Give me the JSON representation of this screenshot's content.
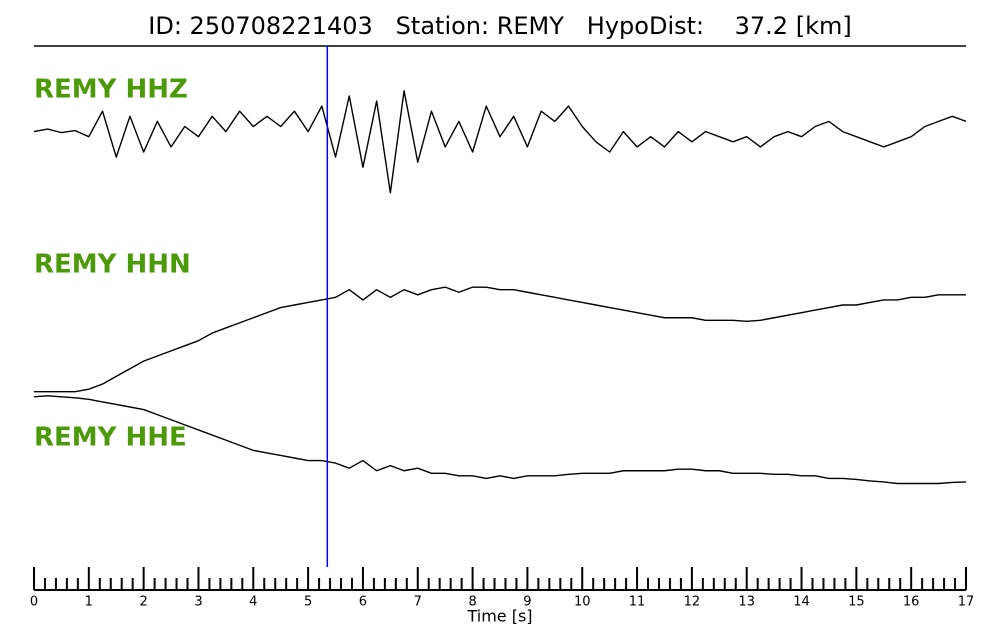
{
  "chart_data": {
    "type": "line",
    "title": "ID: 250708221403   Station: REMY   HypoDist:    37.2 [km]",
    "x_label": "Time [s]",
    "xlim": [
      0,
      17
    ],
    "xticks": [
      0,
      1,
      2,
      3,
      4,
      5,
      6,
      7,
      8,
      9,
      10,
      11,
      12,
      13,
      14,
      15,
      16,
      17
    ],
    "xminorticks": [
      0.2,
      0.4,
      0.6,
      0.8,
      1.2,
      1.4,
      1.6,
      1.8,
      2.2,
      2.4,
      2.6,
      2.8,
      3.2,
      3.4,
      3.6,
      3.8,
      4.2,
      4.4,
      4.6,
      4.8,
      5.2,
      5.4,
      5.6,
      5.8,
      6.2,
      6.4,
      6.6,
      6.8,
      7.2,
      7.4,
      7.6,
      7.8,
      8.2,
      8.4,
      8.6,
      8.8,
      9.2,
      9.4,
      9.6,
      9.8,
      10.2,
      10.4,
      10.6,
      10.8,
      11.2,
      11.4,
      11.6,
      11.8,
      12.2,
      12.4,
      12.6,
      12.8,
      13.2,
      13.4,
      13.6,
      13.8,
      14.2,
      14.4,
      14.6,
      14.8,
      15.2,
      15.4,
      15.6,
      15.8,
      16.2,
      16.4,
      16.6,
      16.8
    ],
    "ylim": [
      0,
      100
    ],
    "pick": {
      "x": 5.35,
      "color": "#0000ff"
    },
    "label_color": "#4c9a0a",
    "x": [
      0,
      0.25,
      0.5,
      0.75,
      1,
      1.25,
      1.5,
      1.75,
      2,
      2.25,
      2.5,
      2.75,
      3,
      3.25,
      3.5,
      3.75,
      4,
      4.25,
      4.5,
      4.75,
      5,
      5.25,
      5.5,
      5.75,
      6,
      6.25,
      6.5,
      6.75,
      7,
      7.25,
      7.5,
      7.75,
      8,
      8.25,
      8.5,
      8.75,
      9,
      9.25,
      9.5,
      9.75,
      10,
      10.25,
      10.5,
      10.75,
      11,
      11.25,
      11.5,
      11.75,
      12,
      12.25,
      12.5,
      12.75,
      13,
      13.25,
      13.5,
      13.75,
      14,
      14.25,
      14.5,
      14.75,
      15,
      15.25,
      15.5,
      15.75,
      16,
      16.25,
      16.5,
      16.75,
      17
    ],
    "series": [
      {
        "name": "REMY HHZ",
        "color": "#000000",
        "values": [
          84,
          84.5,
          83.8,
          84.2,
          83,
          88,
          79,
          87,
          80,
          86,
          81,
          85,
          83,
          87,
          84,
          88,
          85,
          87,
          85,
          88,
          84,
          89,
          79,
          91,
          77,
          90,
          72,
          92,
          78,
          88,
          81,
          86,
          80,
          89,
          83,
          87,
          81,
          88,
          86,
          89,
          85,
          82,
          80,
          84,
          81,
          83,
          81,
          84,
          82,
          84,
          83,
          82,
          83,
          81,
          83,
          84,
          83,
          85,
          86,
          84,
          83,
          82,
          81,
          82,
          83,
          85,
          86,
          87,
          86
        ]
      },
      {
        "name": "REMY HHN",
        "color": "#000000",
        "values": [
          33,
          33,
          33,
          33,
          33.5,
          34.5,
          36,
          37.5,
          39,
          40,
          41,
          42,
          43,
          44.5,
          45.5,
          46.5,
          47.5,
          48.5,
          49.5,
          50,
          50.5,
          51,
          51.5,
          53,
          51,
          53,
          51.5,
          53,
          52,
          53,
          53.5,
          52.5,
          53.5,
          53.5,
          53,
          53,
          52.5,
          52,
          51.5,
          51,
          50.5,
          50,
          49.5,
          49,
          48.5,
          48,
          47.5,
          47.5,
          47.5,
          47,
          47,
          47,
          46.8,
          47,
          47.5,
          48,
          48.5,
          49,
          49.5,
          50,
          50,
          50.5,
          51,
          51,
          51.5,
          51.5,
          52,
          52,
          52
        ]
      },
      {
        "name": "REMY HHE",
        "color": "#000000",
        "values": [
          32,
          32.2,
          32,
          31.8,
          31.5,
          31,
          30.5,
          30,
          29.5,
          28.5,
          27.5,
          26.5,
          25.5,
          24.5,
          23.5,
          22.5,
          21.5,
          21,
          20.5,
          20,
          19.5,
          19.5,
          19,
          18,
          19.5,
          17.5,
          18.5,
          17.5,
          18,
          17,
          17,
          16.5,
          16.5,
          16,
          16.5,
          16,
          16.5,
          16.5,
          16.5,
          16.8,
          17,
          17,
          17,
          17.5,
          17.5,
          17.5,
          17.5,
          17.8,
          17.8,
          17.5,
          17.5,
          17,
          17,
          17,
          16.8,
          16.8,
          16.5,
          16.5,
          16,
          16,
          15.8,
          15.5,
          15.3,
          15,
          15,
          15,
          15,
          15.2,
          15.3
        ]
      }
    ]
  }
}
